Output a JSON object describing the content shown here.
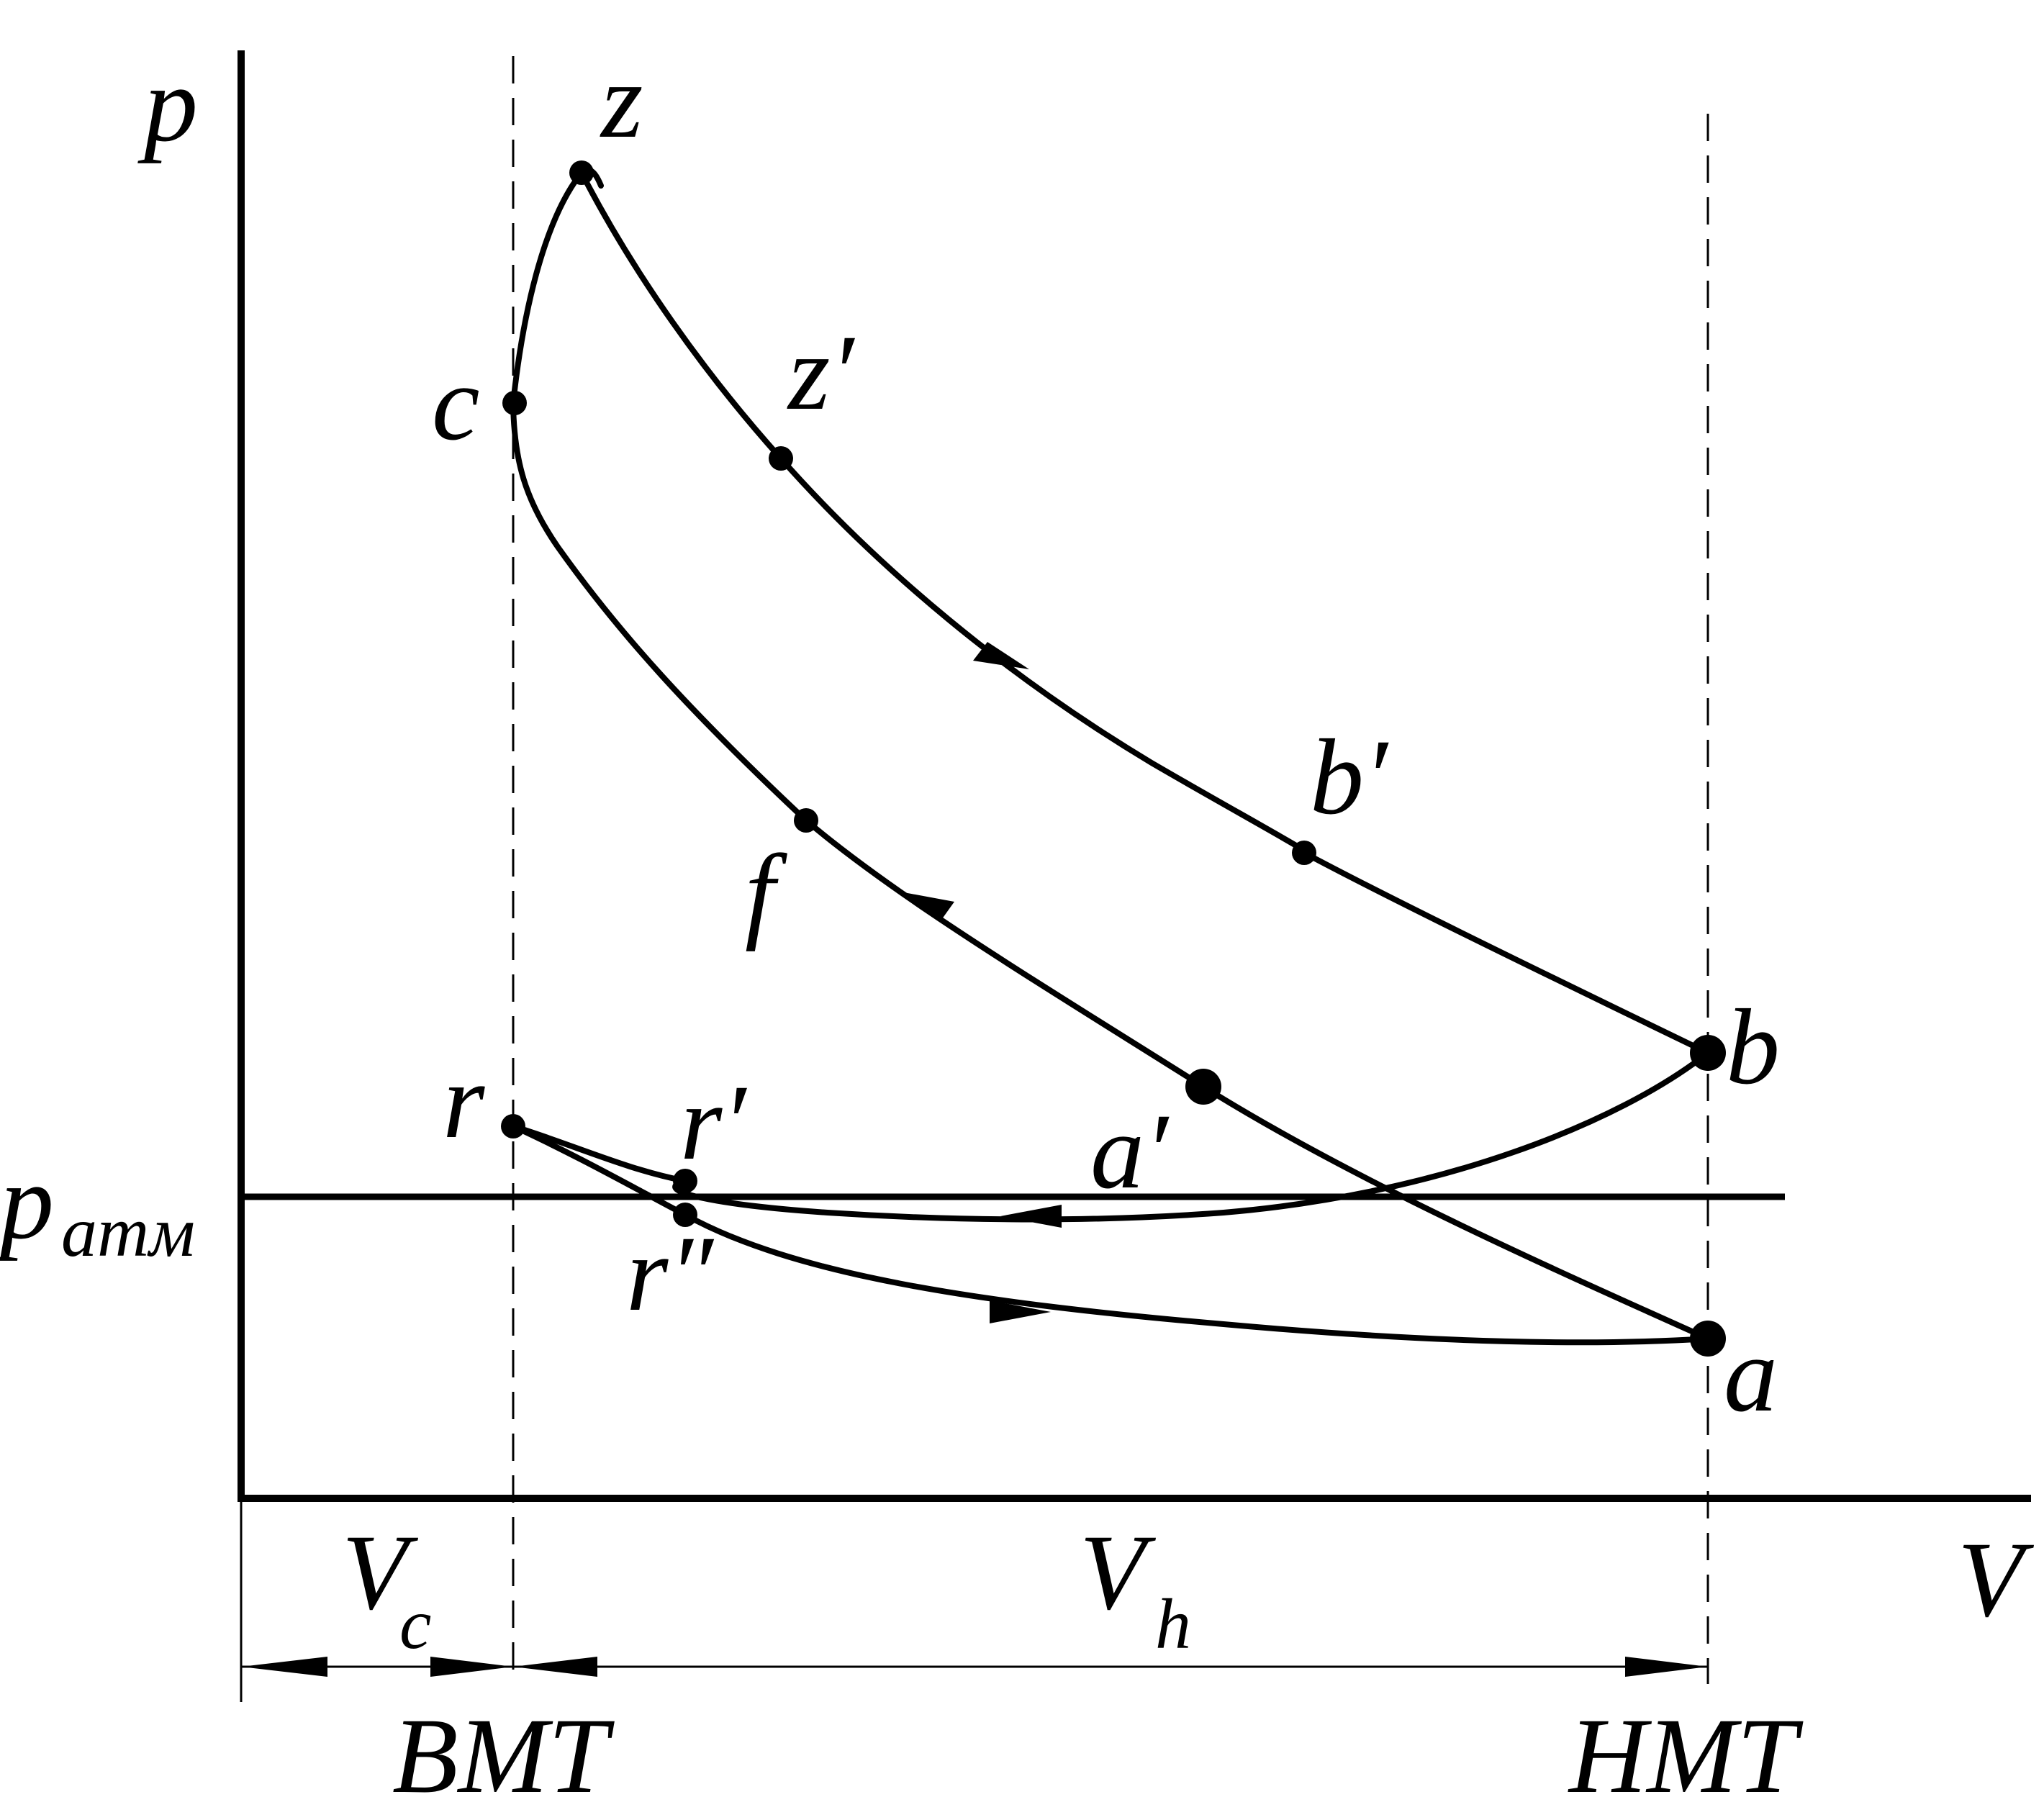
{
  "axes": {
    "y_label": "p",
    "x_label": "V"
  },
  "atm_line": {
    "label_main": "p",
    "label_sub": "атм"
  },
  "dead_centers": {
    "top": "ВМТ",
    "bottom": "НМТ"
  },
  "volumes": {
    "clearance": {
      "main": "V",
      "sub": "c"
    },
    "displacement": {
      "main": "V",
      "sub": "h"
    }
  },
  "points": {
    "z": "z",
    "z_prime": "z′",
    "c": "c",
    "b_prime": "b′",
    "b": "b",
    "f": "f",
    "a_prime": "a′",
    "a": "a",
    "r": "r",
    "r_prime": "r′",
    "r_double_prime": "r″"
  }
}
